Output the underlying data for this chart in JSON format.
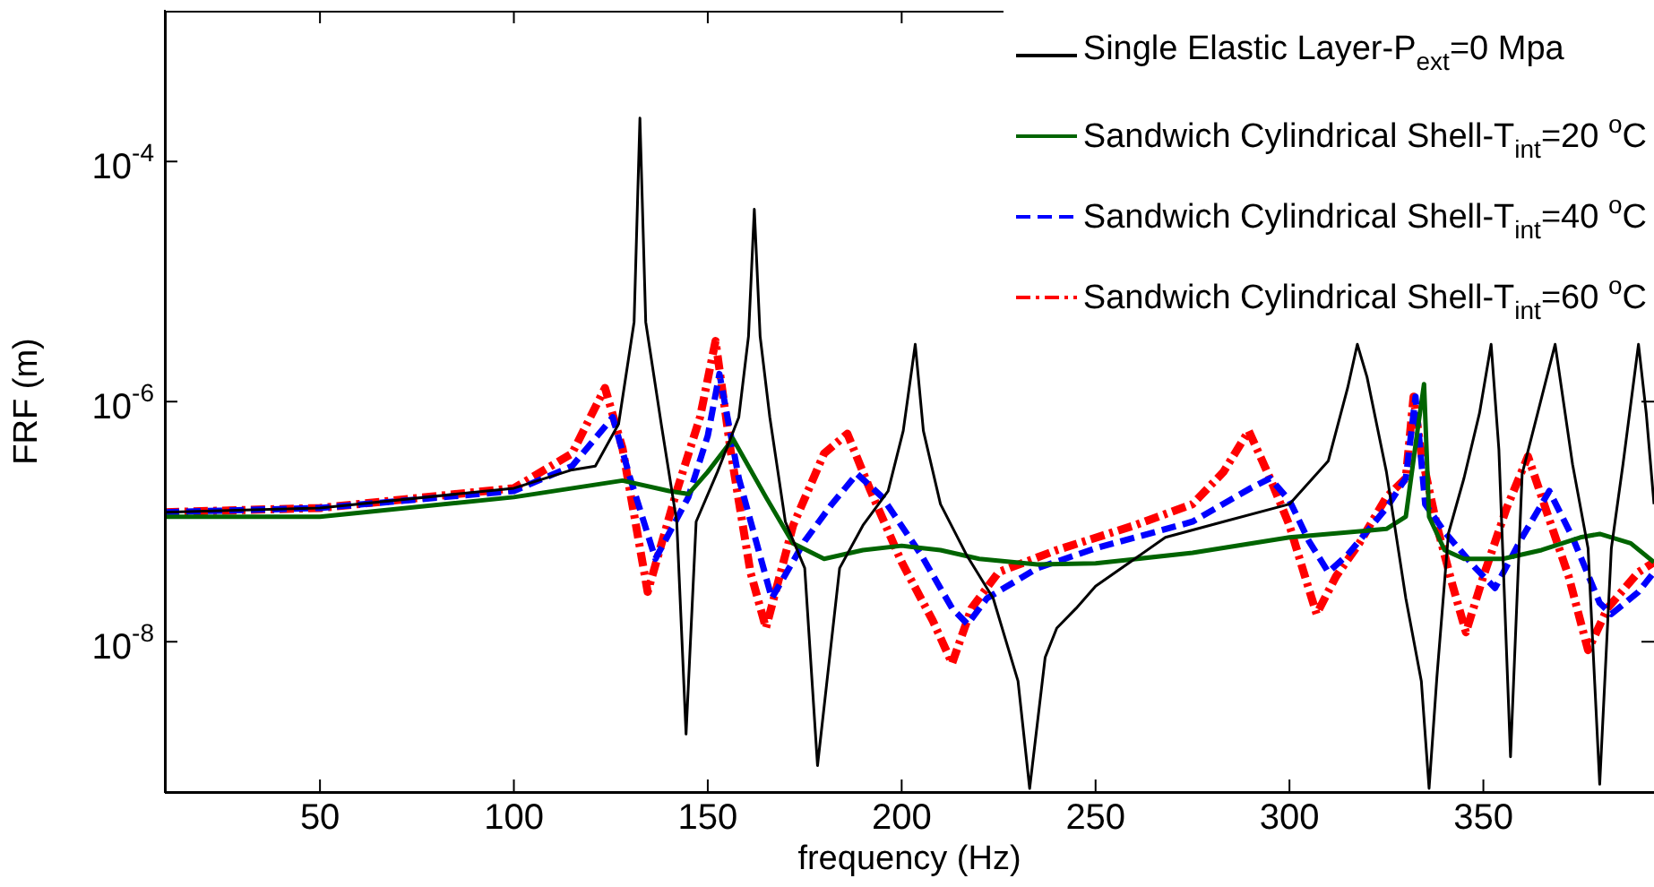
{
  "chart_data": {
    "type": "line",
    "xlabel": "frequency (Hz)",
    "ylabel": "FRF (m)",
    "log": "y",
    "legend": "top right",
    "xlim": [
      10,
      394
    ],
    "xticks": [
      50,
      100,
      150,
      200,
      250,
      300,
      350
    ],
    "ylim": [
      5.6e-10,
      0.0018
    ],
    "yticks": [
      {
        "value": 1e-08,
        "label": "10$^{-8}$"
      },
      {
        "value": 1e-06,
        "label": "10$^{-6}$"
      },
      {
        "value": 0.0001,
        "label": "10$^{-4}$"
      }
    ],
    "series": [
      {
        "name": "Single Elastic Layer-P$_{ext}$=0 Mpa",
        "color": "#000000",
        "line_style": "solid",
        "x": [
          10,
          50,
          100,
          115,
          121,
          127,
          131,
          132.5,
          134,
          138,
          142,
          144.4,
          147,
          152.5,
          158,
          160.5,
          162,
          163.5,
          166,
          170,
          175,
          178.3,
          184,
          190,
          196.5,
          200.4,
          203.5,
          205.6,
          210,
          216.7,
          223.6,
          230,
          233,
          237,
          240,
          245,
          250,
          268,
          283,
          300,
          310,
          315,
          317.5,
          320,
          325,
          330,
          334,
          336,
          338,
          341,
          345,
          349,
          352,
          354,
          357,
          360,
          364,
          368.5,
          373,
          377,
          380,
          383,
          386,
          390,
          392,
          394
        ],
        "values": [
          1.2e-07,
          1.3e-07,
          1.9e-07,
          2.7e-07,
          2.9e-07,
          6.5e-07,
          4.6e-06,
          0.00023,
          4.6e-06,
          6.5e-07,
          1e-07,
          1.7e-09,
          1e-07,
          2.6e-07,
          7.4e-07,
          3.5e-06,
          4e-05,
          3.5e-06,
          7.4e-07,
          1e-07,
          4.1e-08,
          9.3e-10,
          4.1e-08,
          9.3e-08,
          1.8e-07,
          5.7e-07,
          3e-06,
          5.7e-07,
          1.4e-07,
          5.3e-08,
          2.3e-08,
          4.7e-09,
          6e-10,
          7.4e-09,
          1.3e-08,
          1.9e-08,
          2.9e-08,
          7.4e-08,
          1e-07,
          1.4e-07,
          3.2e-07,
          1.3e-06,
          3e-06,
          1.6e-06,
          2.6e-07,
          2.3e-08,
          4.7e-09,
          6e-10,
          5e-09,
          8e-08,
          2.3e-07,
          8e-07,
          3e-06,
          4e-07,
          1.1e-09,
          2.5e-07,
          8e-07,
          3e-06,
          3e-07,
          6e-08,
          6.5e-10,
          6e-08,
          3e-07,
          3e-06,
          8e-07,
          1.4e-07
        ]
      },
      {
        "name": "Sandwich Cylindrical Shell-T$_{int}$=20 $^{o}$C",
        "color": "#006400",
        "line_style": "solid",
        "x": [
          10,
          50,
          100,
          128,
          140,
          145,
          150,
          156.5,
          165,
          172,
          180,
          190,
          200,
          210,
          220,
          235,
          250,
          275,
          300,
          325,
          330,
          333,
          334.7,
          336,
          340,
          345,
          355,
          365,
          375,
          380,
          388,
          394
        ],
        "values": [
          1.1e-07,
          1.1e-07,
          1.6e-07,
          2.2e-07,
          1.8e-07,
          1.7e-07,
          2.6e-07,
          4.9e-07,
          1.6e-07,
          6.6e-08,
          4.9e-08,
          5.8e-08,
          6.3e-08,
          5.8e-08,
          4.9e-08,
          4.4e-08,
          4.5e-08,
          5.5e-08,
          7.4e-08,
          8.7e-08,
          1.1e-07,
          5.7e-07,
          1.4e-06,
          1.1e-07,
          5.8e-08,
          4.9e-08,
          4.9e-08,
          5.8e-08,
          7.4e-08,
          7.9e-08,
          6.6e-08,
          4.6e-08
        ]
      },
      {
        "name": "Sandwich Cylindrical Shell-T$_{int}$=40 $^{o}$C",
        "color": "#0000ff",
        "line_style": "dashed",
        "x": [
          10,
          50,
          100,
          115,
          125.5,
          130,
          136.5,
          145,
          150,
          153,
          158,
          166.5,
          175,
          182,
          188.5,
          195,
          205,
          213,
          217,
          222,
          235,
          250,
          275,
          290,
          295,
          300,
          305,
          310,
          315,
          325,
          330,
          332.5,
          335,
          340,
          348,
          353,
          360,
          367,
          373,
          380,
          383,
          390,
          394
        ],
        "values": [
          1.2e-07,
          1.3e-07,
          1.8e-07,
          2.9e-07,
          7.4e-07,
          2.3e-07,
          4.9e-08,
          1.6e-07,
          5.2e-07,
          1.7e-06,
          2.3e-07,
          2.3e-08,
          6.9e-08,
          1.4e-07,
          2.5e-07,
          1.6e-07,
          5.3e-08,
          1.9e-08,
          1.4e-08,
          2.3e-08,
          4.1e-08,
          6e-08,
          1e-07,
          1.9e-07,
          2.3e-07,
          1.5e-07,
          6.9e-08,
          3.8e-08,
          5.3e-08,
          1.3e-07,
          2.3e-07,
          1.1e-06,
          1.4e-07,
          8.2e-08,
          4.1e-08,
          2.8e-08,
          7.4e-08,
          1.8e-07,
          7.4e-08,
          2.1e-08,
          1.7e-08,
          2.6e-08,
          3.8e-08
        ]
      },
      {
        "name": "Sandwich Cylindrical Shell-T$_{int}$=60 $^{o}$C",
        "color": "#ff0000",
        "line_style": "dashdot",
        "x": [
          10,
          50,
          100,
          115,
          123.5,
          128,
          134.5,
          142,
          148,
          152,
          156,
          161,
          165,
          172,
          180,
          186,
          192,
          200,
          208,
          213,
          218,
          225,
          240,
          260,
          275,
          283,
          289.5,
          295,
          300,
          304,
          307,
          312,
          318,
          325,
          330,
          332,
          334,
          338,
          342,
          345.5,
          350,
          356,
          361.5,
          366,
          372,
          377,
          382,
          390,
          394
        ],
        "values": [
          1.2e-07,
          1.3e-07,
          1.9e-07,
          3.7e-07,
          1.3e-06,
          4.1e-07,
          2.6e-08,
          1.8e-07,
          7.4e-07,
          3.2e-06,
          3.7e-07,
          3.8e-08,
          1.3e-08,
          9.3e-08,
          3.7e-07,
          5.4e-07,
          1.8e-07,
          4.6e-08,
          1.5e-08,
          6.6e-09,
          1.9e-08,
          3.8e-08,
          5.8e-08,
          9.3e-08,
          1.4e-07,
          2.6e-07,
          5.7e-07,
          2.3e-07,
          9.3e-08,
          3.5e-08,
          1.7e-08,
          3.5e-08,
          6.6e-08,
          1.6e-07,
          2.3e-07,
          1.1e-06,
          3.7e-07,
          9.3e-08,
          3e-08,
          1.2e-08,
          3.5e-08,
          1.3e-07,
          3.5e-07,
          1.3e-07,
          3.5e-08,
          8.5e-09,
          1.9e-08,
          3.8e-08,
          4.6e-08
        ]
      }
    ]
  }
}
